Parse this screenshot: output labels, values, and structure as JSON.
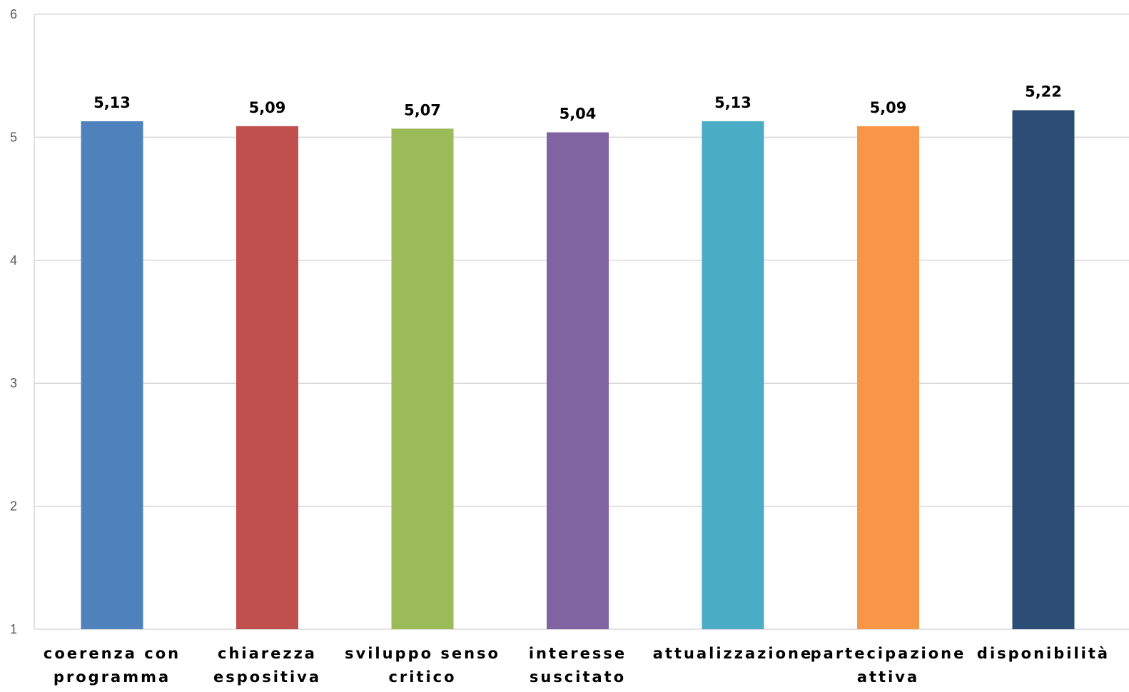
{
  "chart_data": {
    "type": "bar",
    "categories": [
      [
        "coerenza con",
        "programma"
      ],
      [
        "chiarezza",
        "espositiva"
      ],
      [
        "sviluppo senso",
        "critico"
      ],
      [
        "interesse",
        "suscitato"
      ],
      [
        "attualizzazione"
      ],
      [
        "partecipazione",
        "attiva"
      ],
      [
        "disponibilità"
      ]
    ],
    "values": [
      5.13,
      5.09,
      5.07,
      5.04,
      5.13,
      5.09,
      5.22
    ],
    "data_labels": [
      "5,13",
      "5,09",
      "5,07",
      "5,04",
      "5,13",
      "5,09",
      "5,22"
    ],
    "colors": [
      "#4f81bd",
      "#c0504d",
      "#9bbb59",
      "#8064a2",
      "#4bacc6",
      "#f79646",
      "#2c4d75"
    ],
    "title": "",
    "xlabel": "",
    "ylabel": "",
    "ylim": [
      1,
      6
    ],
    "yticks": [
      1,
      2,
      3,
      4,
      5,
      6
    ],
    "grid": true,
    "legend": "none"
  }
}
